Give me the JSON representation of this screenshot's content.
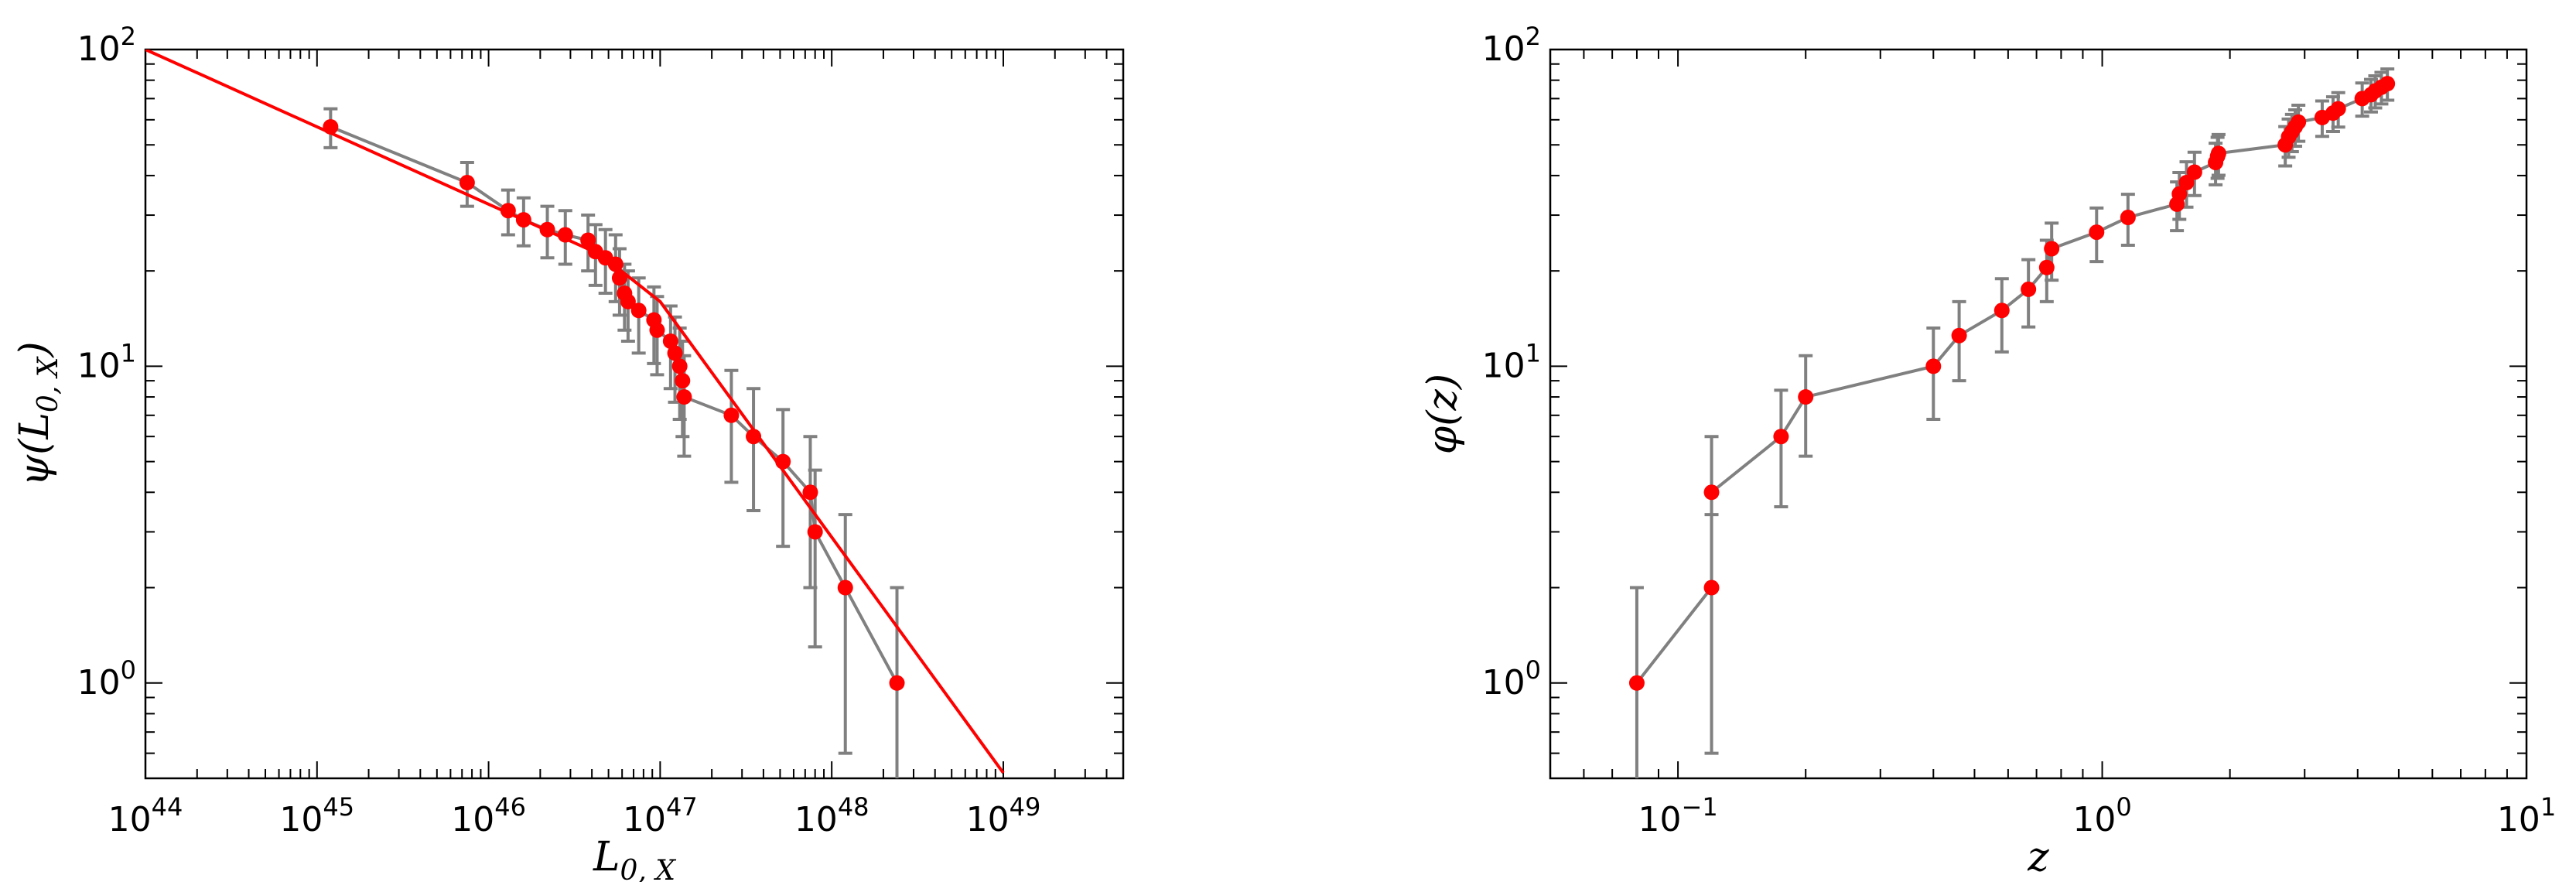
{
  "chart_data": [
    {
      "type": "scatter",
      "title": "",
      "xlabel": "L₀,ₓ",
      "xlabel_main": "L",
      "xlabel_sub": "0, X",
      "ylabel": "ψ(L₀,ₓ)",
      "ylabel_pre": "ψ(L",
      "ylabel_sub": "0, X",
      "ylabel_post": ")",
      "xscale": "log",
      "yscale": "log",
      "xlim": [
        1e+44,
        5e+49
      ],
      "ylim": [
        0.5,
        100
      ],
      "grid": false,
      "legend": "none",
      "x_tick_labels": [
        {
          "value": 1e+44,
          "base": "10",
          "exp": "44"
        },
        {
          "value": 1e+45,
          "base": "10",
          "exp": "45"
        },
        {
          "value": 1e+46,
          "base": "10",
          "exp": "46"
        },
        {
          "value": 1e+47,
          "base": "10",
          "exp": "47"
        },
        {
          "value": 1e+48,
          "base": "10",
          "exp": "48"
        },
        {
          "value": 1e+49,
          "base": "10",
          "exp": "49"
        }
      ],
      "y_tick_labels": [
        {
          "value": 1,
          "base": "10",
          "exp": "0"
        },
        {
          "value": 10,
          "base": "10",
          "exp": "1"
        },
        {
          "value": 100,
          "base": "10",
          "exp": "2"
        }
      ],
      "series": [
        {
          "color": "#ff0000",
          "line_color": "#808080",
          "x": [
            1.2e+45,
            7.5e+45,
            1.3e+46,
            1.6e+46,
            2.2e+46,
            2.8e+46,
            3.8e+46,
            4.2e+46,
            4.8e+46,
            5.5e+46,
            5.8e+46,
            6.2e+46,
            6.5e+46,
            7.5e+46,
            9.2e+46,
            9.6e+46,
            1.15e+47,
            1.22e+47,
            1.3e+47,
            1.35e+47,
            1.38e+47,
            2.6e+47,
            3.5e+47,
            5.2e+47,
            7.5e+47,
            8e+47,
            1.2e+48,
            2.4e+48
          ],
          "y": [
            57,
            38,
            31,
            29,
            27,
            26,
            25,
            23,
            22,
            21,
            19,
            17,
            16,
            15,
            14,
            13,
            12,
            11,
            10,
            9,
            8,
            7,
            6,
            5,
            4,
            3,
            2,
            1
          ],
          "yerr_low": [
            8,
            6,
            5,
            5,
            5,
            5,
            5,
            5,
            5,
            5,
            4.5,
            4,
            4,
            4,
            3.8,
            3.6,
            3.5,
            3.3,
            3.2,
            3,
            2.8,
            2.7,
            2.5,
            2.3,
            2.0,
            1.7,
            1.4,
            1.0
          ],
          "yerr_high": [
            8,
            6,
            5,
            5,
            5,
            5,
            5,
            5,
            5,
            5,
            4.5,
            4,
            4,
            4,
            3.8,
            3.6,
            3.5,
            3.3,
            3.2,
            3,
            2.8,
            2.7,
            2.5,
            2.3,
            2.0,
            1.7,
            1.4,
            1.0
          ]
        }
      ],
      "fit_line": {
        "color": "#ff0000",
        "x": [
          1e+44,
          4.5e+46,
          1e+47,
          1e+49
        ],
        "y": [
          100,
          22.5,
          16.0,
          0.52
        ]
      }
    },
    {
      "type": "scatter",
      "title": "",
      "xlabel": "z",
      "ylabel": "φ(z)",
      "ylabel_pre": "φ(z)",
      "xscale": "log",
      "yscale": "log",
      "xlim": [
        0.05,
        10
      ],
      "ylim": [
        0.5,
        100
      ],
      "grid": false,
      "legend": "none",
      "x_tick_labels": [
        {
          "value": 0.1,
          "base": "10",
          "exp": "−1"
        },
        {
          "value": 1,
          "base": "10",
          "exp": "0"
        },
        {
          "value": 10,
          "base": "10",
          "exp": "1"
        }
      ],
      "y_tick_labels": [
        {
          "value": 1,
          "base": "10",
          "exp": "0"
        },
        {
          "value": 10,
          "base": "10",
          "exp": "1"
        },
        {
          "value": 100,
          "base": "10",
          "exp": "2"
        }
      ],
      "series": [
        {
          "color": "#ff0000",
          "line_color": "#808080",
          "x": [
            0.08,
            0.12,
            0.12,
            0.175,
            0.2,
            0.4,
            0.46,
            0.58,
            0.67,
            0.74,
            0.76,
            0.97,
            1.15,
            1.5,
            1.52,
            1.58,
            1.65,
            1.85,
            1.87,
            1.88,
            2.7,
            2.75,
            2.8,
            2.85,
            2.9,
            3.3,
            3.5,
            3.6,
            4.1,
            4.3,
            4.4,
            4.55,
            4.7
          ],
          "y": [
            1,
            2,
            4,
            6,
            8,
            10,
            12.5,
            15,
            17.5,
            20.5,
            23.5,
            26.5,
            29.5,
            32.5,
            35,
            38,
            41,
            44,
            46,
            47,
            50,
            53,
            55,
            57,
            59,
            61,
            63,
            65,
            70,
            72,
            74,
            76,
            78
          ],
          "yerr_low": [
            1.0,
            1.4,
            2.0,
            2.4,
            2.8,
            3.2,
            3.5,
            3.9,
            4.2,
            4.5,
            4.8,
            5.1,
            5.4,
            5.7,
            5.9,
            6.2,
            6.4,
            6.6,
            6.8,
            6.9,
            7.1,
            7.3,
            7.4,
            7.5,
            7.7,
            7.8,
            7.9,
            8.1,
            8.4,
            8.5,
            8.6,
            8.7,
            8.8
          ],
          "yerr_high": [
            1.0,
            1.4,
            2.0,
            2.4,
            2.8,
            3.2,
            3.5,
            3.9,
            4.2,
            4.5,
            4.8,
            5.1,
            5.4,
            5.7,
            5.9,
            6.2,
            6.4,
            6.6,
            6.8,
            6.9,
            7.1,
            7.3,
            7.4,
            7.5,
            7.7,
            7.8,
            7.9,
            8.1,
            8.4,
            8.5,
            8.6,
            8.7,
            8.8
          ]
        }
      ]
    }
  ]
}
